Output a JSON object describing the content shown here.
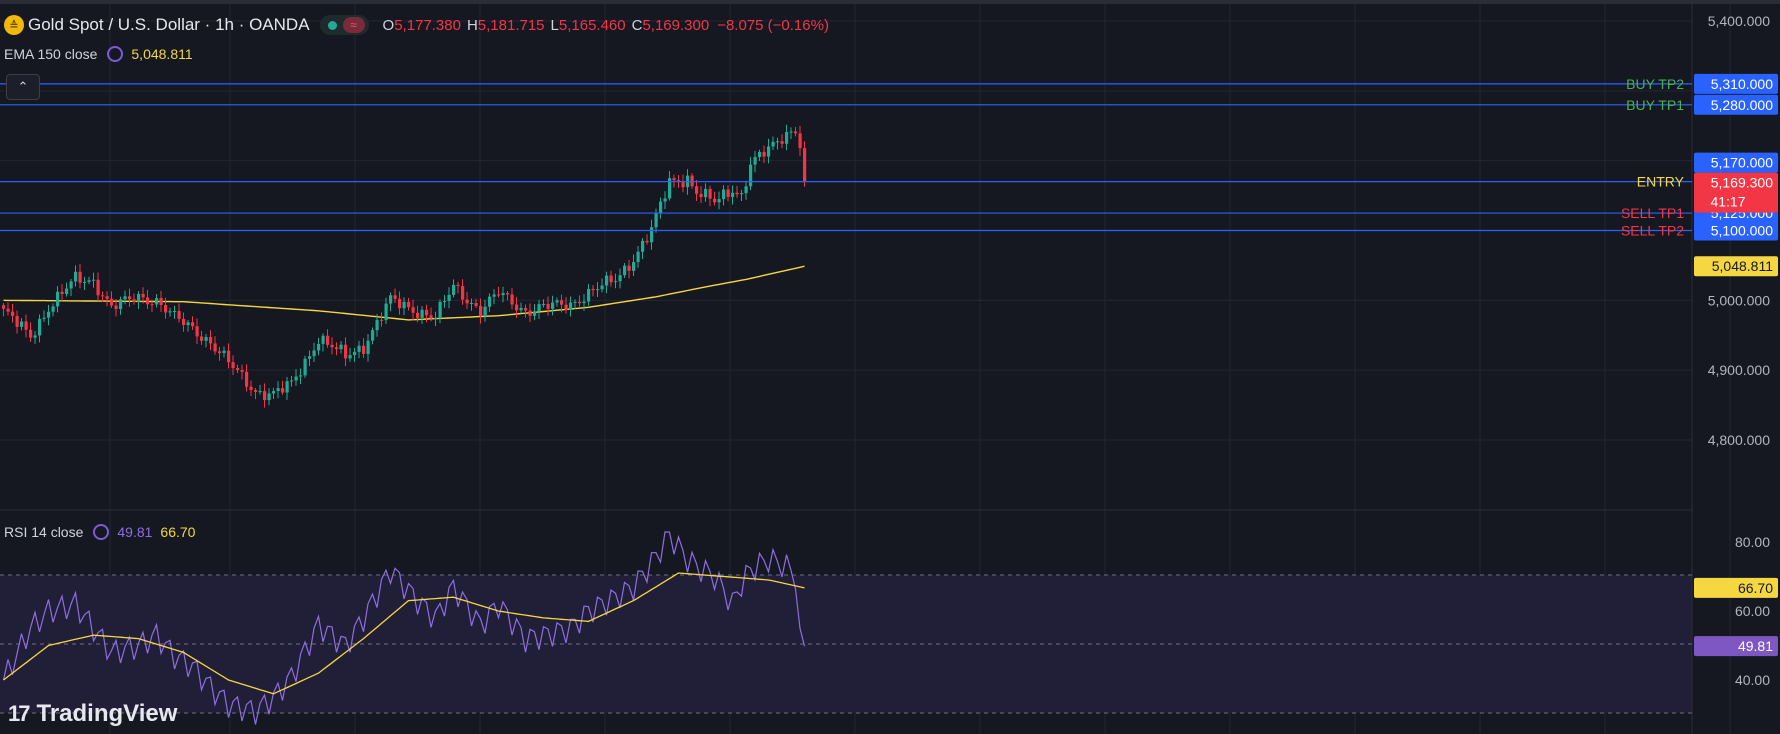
{
  "header": {
    "symbol_title": "Gold Spot / U.S. Dollar · 1h · OANDA",
    "coin_glyph": "≙",
    "status_glyph": "≈",
    "ohlc": [
      {
        "k": "O",
        "v": "5,177.380"
      },
      {
        "k": "H",
        "v": "5,181.715"
      },
      {
        "k": "L",
        "v": "5,165.460"
      },
      {
        "k": "C",
        "v": "5,169.300"
      }
    ],
    "change": "−8.075 (−0.16%)"
  },
  "ema_legend": {
    "name": "EMA 150 close",
    "value": "5,048.811"
  },
  "rsi_legend": {
    "name": "RSI 14 close",
    "value": "49.81",
    "ma_value": "66.70"
  },
  "collapse_glyph": "⌃",
  "logo": {
    "mark": "17",
    "text": "TradingView"
  },
  "colors": {
    "background": "#151821",
    "grid": "#232632",
    "up": "#22ab94",
    "down": "#f23645",
    "level_line": "#2962ff",
    "ema": "#f5d742",
    "rsi": "#7e57c2",
    "rsi_band": "#262342"
  },
  "chart_data": [
    {
      "type": "candlestick",
      "title": "Gold Spot / U.S. Dollar · 1h · OANDA",
      "y_ticks": [
        5400,
        5000,
        4900,
        4800
      ],
      "y_tick_labels": [
        "5,400.000",
        "5,000.000",
        "4,900.000",
        "4,800.000"
      ],
      "ylim": [
        4700,
        5420
      ],
      "grid": true,
      "levels": [
        {
          "name": "BUY TP2",
          "price": 5310,
          "price_label": "5,310.000",
          "label_color": "#4caf50"
        },
        {
          "name": "BUY TP1",
          "price": 5280,
          "price_label": "5,280.000",
          "label_color": "#4caf50"
        },
        {
          "name": "ENTRY",
          "price": 5170,
          "price_label": "5,170.000",
          "label_color": "#f5d742"
        },
        {
          "name": "SELL TP1",
          "price": 5125,
          "price_label": "5,125.000",
          "label_color": "#f23645"
        },
        {
          "name": "SELL TP2",
          "price": 5100,
          "price_label": "5,100.000",
          "label_color": "#f23645"
        }
      ],
      "last_price": {
        "price": 5169.3,
        "label": "5,169.300",
        "countdown": "41:17"
      },
      "ema_marker": {
        "price": 5048.811,
        "label": "5,048.811"
      },
      "close_anchors": [
        [
          0,
          4985
        ],
        [
          6,
          4948
        ],
        [
          10,
          4990
        ],
        [
          16,
          5030
        ],
        [
          20,
          5028
        ],
        [
          24,
          4990
        ],
        [
          30,
          5005
        ],
        [
          34,
          5000
        ],
        [
          38,
          4975
        ],
        [
          42,
          4960
        ],
        [
          46,
          4940
        ],
        [
          50,
          4910
        ],
        [
          56,
          4870
        ],
        [
          60,
          4865
        ],
        [
          64,
          4880
        ],
        [
          70,
          4945
        ],
        [
          76,
          4920
        ],
        [
          80,
          4935
        ],
        [
          86,
          5000
        ],
        [
          92,
          4985
        ],
        [
          96,
          4975
        ],
        [
          100,
          5020
        ],
        [
          106,
          4985
        ],
        [
          110,
          5010
        ],
        [
          116,
          4985
        ],
        [
          120,
          4990
        ],
        [
          126,
          4995
        ],
        [
          130,
          5010
        ],
        [
          136,
          5030
        ],
        [
          140,
          5060
        ],
        [
          144,
          5100
        ],
        [
          146,
          5135
        ],
        [
          148,
          5170
        ],
        [
          152,
          5175
        ],
        [
          154,
          5155
        ],
        [
          158,
          5140
        ],
        [
          162,
          5160
        ],
        [
          164,
          5150
        ],
        [
          166,
          5195
        ],
        [
          170,
          5215
        ],
        [
          174,
          5240
        ],
        [
          176,
          5245
        ],
        [
          177,
          5218
        ],
        [
          178,
          5169.3
        ]
      ],
      "ema_series": [
        [
          0,
          5000
        ],
        [
          40,
          4998
        ],
        [
          70,
          4985
        ],
        [
          90,
          4972
        ],
        [
          110,
          4978
        ],
        [
          130,
          4990
        ],
        [
          145,
          5005
        ],
        [
          155,
          5018
        ],
        [
          165,
          5030
        ],
        [
          178,
          5048.811
        ]
      ]
    },
    {
      "type": "line",
      "title": "RSI 14 close",
      "y_ticks": [
        80,
        60,
        40
      ],
      "y_tick_labels": [
        "80.00",
        "60.00",
        "40.00"
      ],
      "ylim": [
        29,
        85
      ],
      "band": [
        30,
        70
      ],
      "grid": true,
      "rsi_last": {
        "value": 49.81,
        "label": "49.81"
      },
      "ma_last": {
        "value": 66.7,
        "label": "66.70"
      },
      "rsi_series": [
        [
          0,
          40
        ],
        [
          6,
          55
        ],
        [
          10,
          60
        ],
        [
          16,
          62
        ],
        [
          20,
          55
        ],
        [
          24,
          48
        ],
        [
          30,
          50
        ],
        [
          34,
          53
        ],
        [
          38,
          47
        ],
        [
          42,
          44
        ],
        [
          46,
          38
        ],
        [
          50,
          33
        ],
        [
          56,
          31
        ],
        [
          60,
          35
        ],
        [
          64,
          41
        ],
        [
          70,
          56
        ],
        [
          76,
          50
        ],
        [
          80,
          58
        ],
        [
          86,
          72
        ],
        [
          92,
          63
        ],
        [
          96,
          58
        ],
        [
          100,
          67
        ],
        [
          106,
          56
        ],
        [
          110,
          62
        ],
        [
          116,
          52
        ],
        [
          120,
          53
        ],
        [
          126,
          55
        ],
        [
          130,
          60
        ],
        [
          136,
          64
        ],
        [
          140,
          67
        ],
        [
          144,
          74
        ],
        [
          146,
          78
        ],
        [
          148,
          82
        ],
        [
          152,
          75
        ],
        [
          154,
          73
        ],
        [
          158,
          70
        ],
        [
          162,
          62
        ],
        [
          164,
          68
        ],
        [
          166,
          72
        ],
        [
          170,
          75
        ],
        [
          174,
          73
        ],
        [
          176,
          70
        ],
        [
          177,
          55
        ],
        [
          178,
          49.81
        ]
      ],
      "ma_series": [
        [
          0,
          40
        ],
        [
          10,
          50
        ],
        [
          20,
          53
        ],
        [
          30,
          52
        ],
        [
          40,
          48
        ],
        [
          50,
          40
        ],
        [
          60,
          36
        ],
        [
          70,
          42
        ],
        [
          80,
          52
        ],
        [
          90,
          63
        ],
        [
          100,
          64
        ],
        [
          110,
          60
        ],
        [
          120,
          58
        ],
        [
          130,
          57
        ],
        [
          140,
          63
        ],
        [
          150,
          71
        ],
        [
          160,
          70
        ],
        [
          170,
          69
        ],
        [
          178,
          66.7
        ]
      ]
    }
  ]
}
